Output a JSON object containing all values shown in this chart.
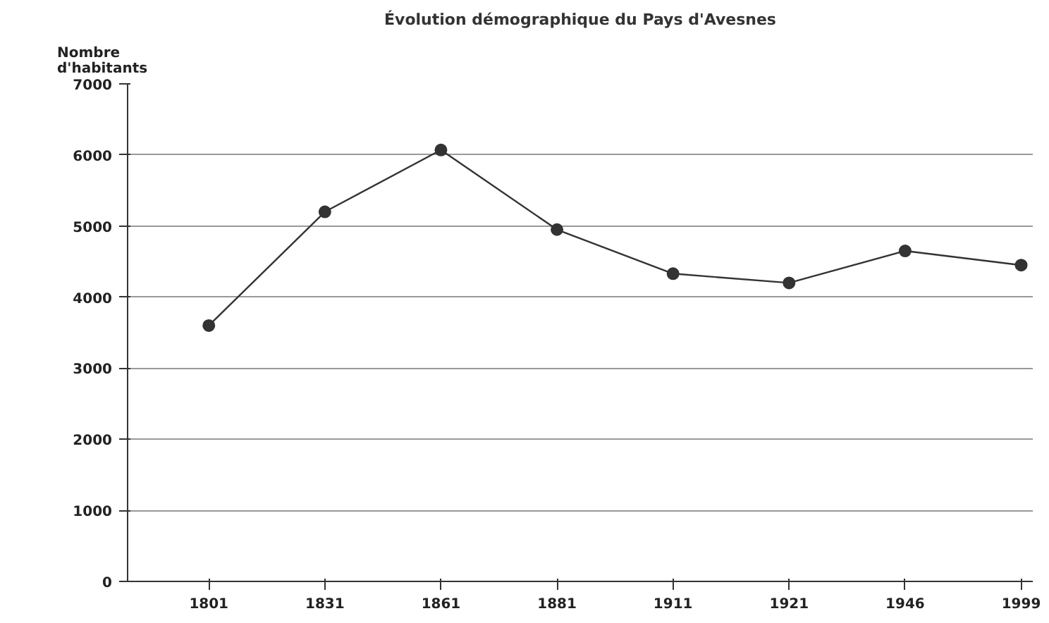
{
  "chart_data": {
    "type": "line",
    "title": "Évolution démographique du Pays d'Avesnes",
    "ylabel": "Nombre\nd'habitants",
    "categories": [
      "1801",
      "1831",
      "1861",
      "1881",
      "1911",
      "1921",
      "1946",
      "1999"
    ],
    "series": [
      {
        "color": "#333333",
        "values": [
          3600,
          5200,
          6070,
          4950,
          4330,
          4200,
          4650,
          4450
        ]
      }
    ],
    "ylim": [
      0,
      7000
    ],
    "yticks": [
      0,
      1000,
      2000,
      3000,
      4000,
      5000,
      6000,
      7000
    ],
    "grid": "y",
    "marker": "circle",
    "line_style": "solid"
  }
}
